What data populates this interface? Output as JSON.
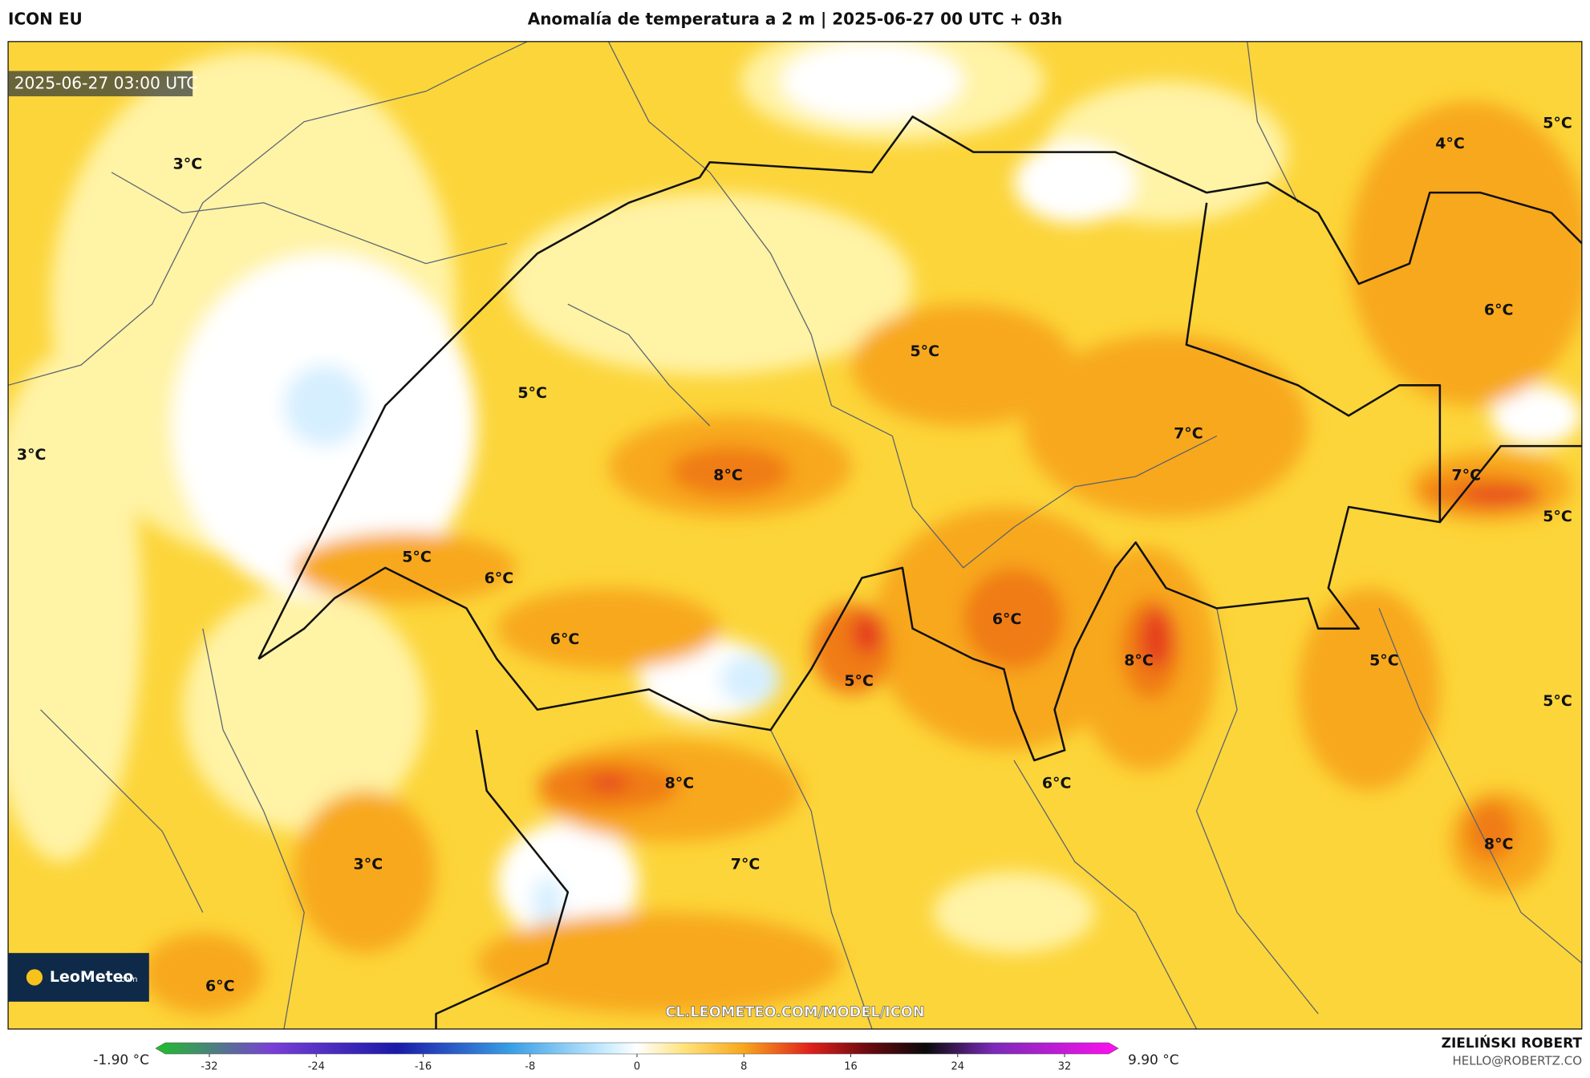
{
  "header": {
    "model": "ICON EU",
    "title": "Anomalía de temperatura a 2 m | 2025-06-27 00 UTC + 03h"
  },
  "map": {
    "timestamp": "2025-06-27 03:00 UTC",
    "labels": [
      "3°C",
      "3°C",
      "5°C",
      "5°C",
      "8°C",
      "5°C",
      "6°C",
      "6°C",
      "4°C",
      "5°C",
      "6°C",
      "7°C",
      "7°C",
      "5°C",
      "6°C",
      "5°C",
      "8°C",
      "5°C",
      "5°C",
      "8°C",
      "6°C",
      "7°C",
      "3°C",
      "8°C",
      "6°C"
    ],
    "watermark": "CL.LEOMETEO.COM/MODEL/ICON",
    "logo": {
      "name": "LeoMeteo",
      "suffix": ".com"
    }
  },
  "colorbar": {
    "min_label": "-1.90 °C",
    "max_label": "9.90 °C",
    "lim": [
      -35.3,
      35.3
    ],
    "ticks": [
      -32,
      -24,
      -16,
      -8,
      0,
      8,
      16,
      24,
      32
    ]
  },
  "footer": {
    "author": "ZIELIŃSKI ROBERT",
    "contact": "HELLO@ROBERTZ.CO"
  }
}
